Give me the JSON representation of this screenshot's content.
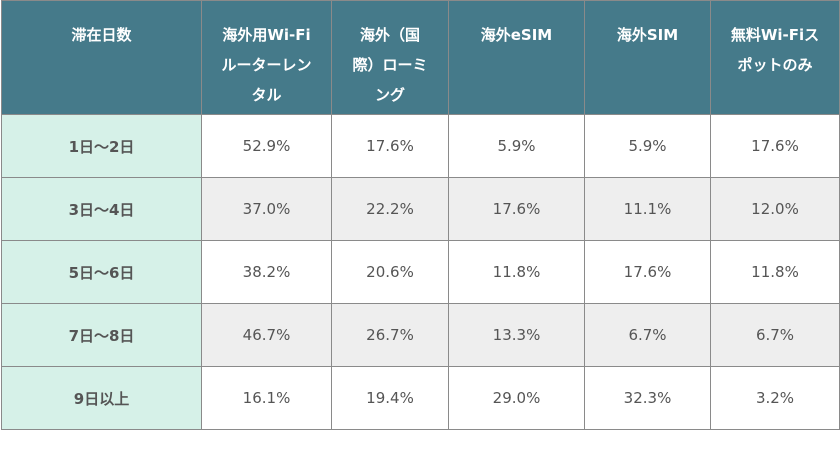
{
  "table": {
    "headers": [
      "滞在日数",
      "海外用Wi-Fiルーターレンタル",
      "海外（国際）ローミング",
      "海外eSIM",
      "海外SIM",
      "無料Wi-Fiスポットのみ"
    ],
    "header_lines": [
      [
        "滞在日数"
      ],
      [
        "海外用Wi-Fi",
        "ルーターレン",
        "タル"
      ],
      [
        "海外（国",
        "際）ローミ",
        "ング"
      ],
      [
        "海外eSIM"
      ],
      [
        "海外SIM"
      ],
      [
        "無料Wi-Fiス",
        "ポットのみ"
      ]
    ],
    "rows": [
      {
        "day": "1日～2日",
        "values": [
          "52.9%",
          "17.6%",
          "5.9%",
          "5.9%",
          "17.6%"
        ]
      },
      {
        "day": "3日～4日",
        "values": [
          "37.0%",
          "22.2%",
          "17.6%",
          "11.1%",
          "12.0%"
        ]
      },
      {
        "day": "5日～6日",
        "values": [
          "38.2%",
          "20.6%",
          "11.8%",
          "17.6%",
          "11.8%"
        ]
      },
      {
        "day": "7日～8日",
        "values": [
          "46.7%",
          "26.7%",
          "13.3%",
          "6.7%",
          "6.7%"
        ]
      },
      {
        "day": "9日以上",
        "values": [
          "16.1%",
          "19.4%",
          "29.0%",
          "32.3%",
          "3.2%"
        ]
      }
    ]
  },
  "colors": {
    "header_bg": "#457a8a",
    "day_bg": "#d6f1e8",
    "alt_row_bg": "#eeeeee"
  }
}
